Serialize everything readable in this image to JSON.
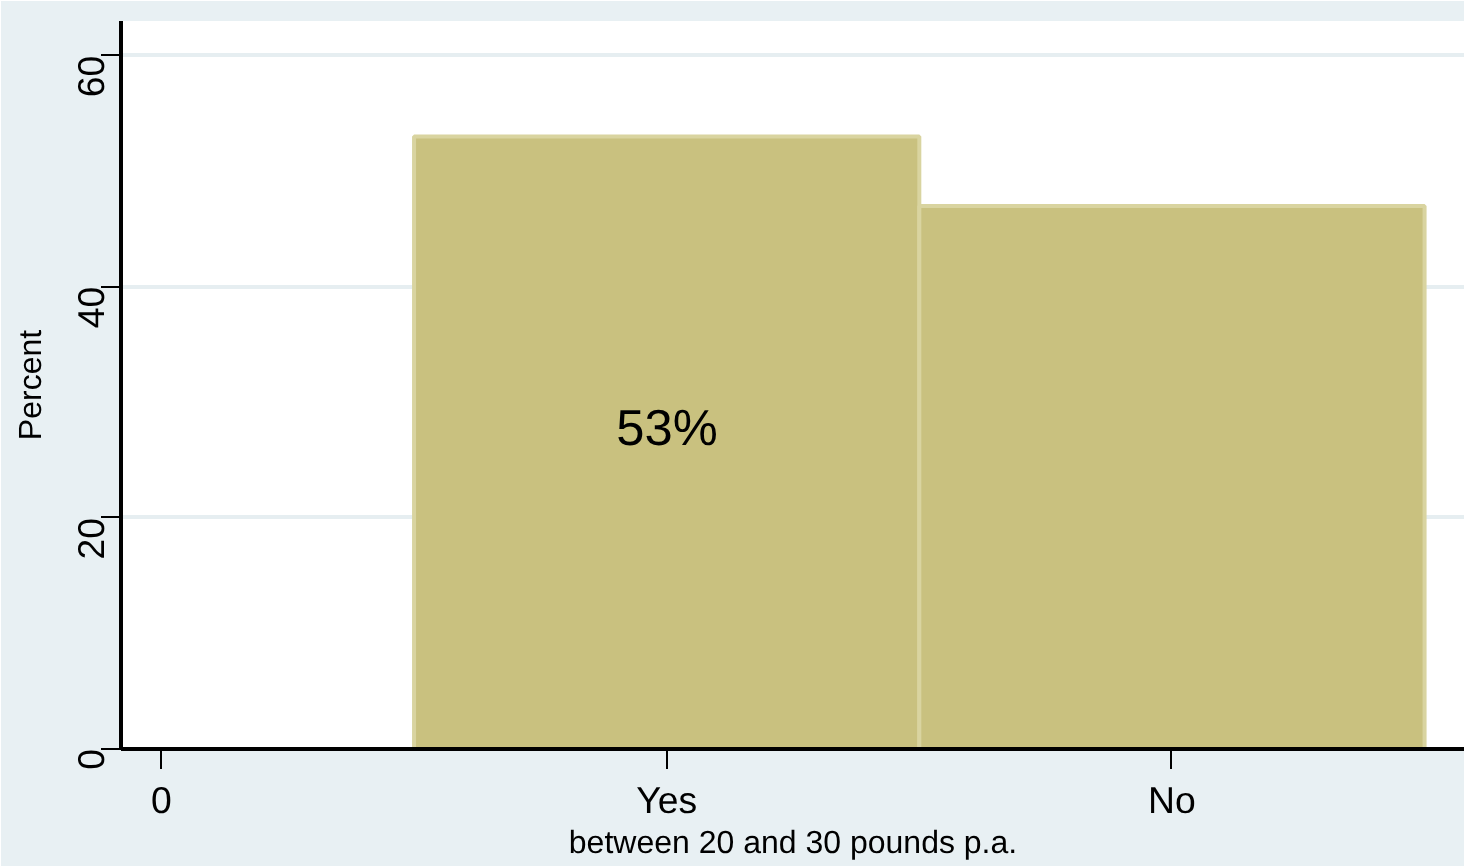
{
  "chart_data": {
    "type": "bar",
    "ylabel": "Percent",
    "xlabel": "between 20 and 30 pounds p.a.",
    "categories": [
      "0",
      "Yes",
      "No"
    ],
    "values": [
      null,
      53,
      47
    ],
    "color": "#c9c17f",
    "ylim": [
      0,
      63
    ],
    "yticks": [
      0,
      20,
      40,
      60
    ],
    "grid": "y",
    "annotations": [
      "53%"
    ]
  }
}
